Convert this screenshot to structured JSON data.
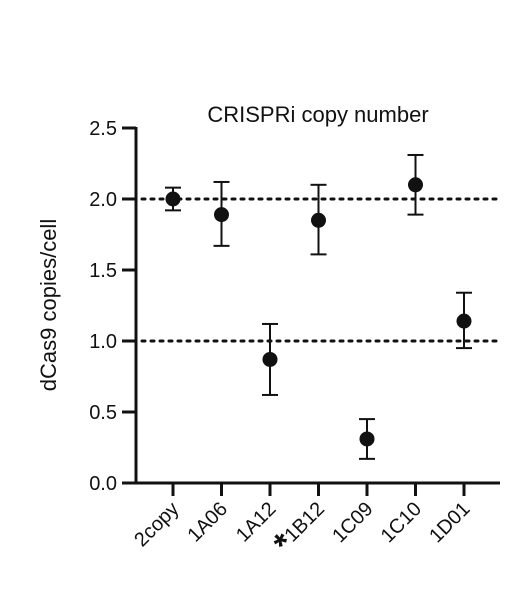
{
  "chart_data": {
    "type": "scatter",
    "title": "CRISPRi copy number",
    "xlabel": "",
    "ylabel": "dCas9 copies/cell",
    "ylim": [
      0,
      2.5
    ],
    "yticks": [
      "0.0",
      "0.5",
      "1.0",
      "1.5",
      "2.0",
      "2.5"
    ],
    "categories": [
      "2copy",
      "1A06",
      "1A12",
      "*1B12",
      "1C09",
      "1C10",
      "1D01"
    ],
    "values": [
      2.0,
      1.89,
      0.87,
      1.85,
      0.31,
      2.1,
      1.14
    ],
    "error_low": [
      1.92,
      1.67,
      0.62,
      1.61,
      0.17,
      1.89,
      0.95
    ],
    "error_high": [
      2.08,
      2.12,
      1.12,
      2.1,
      0.45,
      2.31,
      1.34
    ],
    "reference_lines": [
      2.0,
      1.0
    ],
    "reference_style": "dotted",
    "grid": false,
    "legend": "none",
    "marker_color": "#111111"
  }
}
